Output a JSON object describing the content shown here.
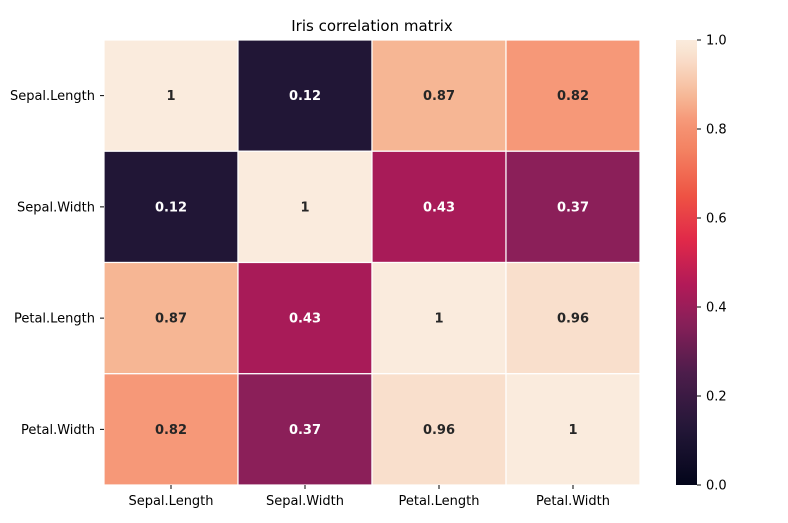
{
  "chart_data": {
    "type": "heatmap",
    "title": "Iris correlation matrix",
    "xlabel": "",
    "ylabel": "",
    "x_labels": [
      "Sepal.Length",
      "Sepal.Width",
      "Petal.Length",
      "Petal.Width"
    ],
    "y_labels": [
      "Sepal.Length",
      "Sepal.Width",
      "Petal.Length",
      "Petal.Width"
    ],
    "values": [
      [
        1,
        0.12,
        0.87,
        0.82
      ],
      [
        0.12,
        1,
        0.43,
        0.37
      ],
      [
        0.87,
        0.43,
        1,
        0.96
      ],
      [
        0.82,
        0.37,
        0.96,
        1
      ]
    ],
    "annotations": [
      [
        "1",
        "0.12",
        "0.87",
        "0.82"
      ],
      [
        "0.12",
        "1",
        "0.43",
        "0.37"
      ],
      [
        "0.87",
        "0.43",
        "1",
        "0.96"
      ],
      [
        "0.82",
        "0.37",
        "0.96",
        "1"
      ]
    ],
    "colormap": "rocket",
    "vmin": 0,
    "vmax": 1,
    "colorbar_ticks": [
      "0.0",
      "0.2",
      "0.4",
      "0.6",
      "0.8",
      "1.0"
    ],
    "colorbar_placement": "right",
    "grid": false
  }
}
